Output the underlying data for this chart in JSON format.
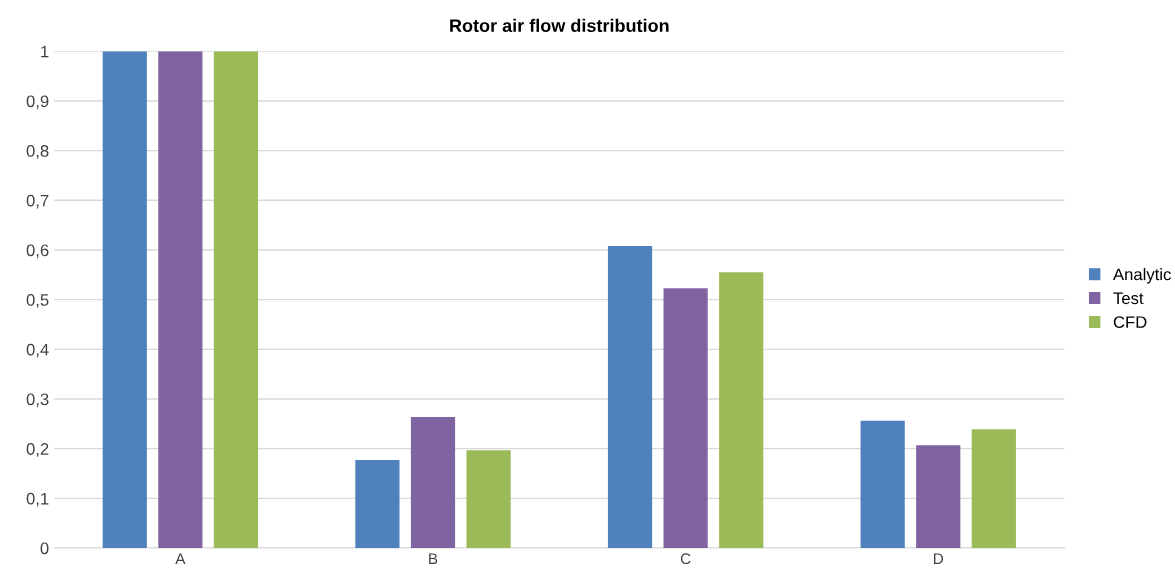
{
  "chart_data": {
    "type": "bar",
    "title": "Rotor air flow distribution",
    "categories": [
      "A",
      "B",
      "C",
      "D"
    ],
    "series": [
      {
        "name": "Analytic",
        "color": "#4f81bd",
        "values": [
          1,
          0.177,
          0.608,
          0.256
        ]
      },
      {
        "name": "Test",
        "color": "#8064a2",
        "values": [
          1,
          0.264,
          0.523,
          0.207
        ]
      },
      {
        "name": "CFD",
        "color": "#9bbb59",
        "values": [
          1,
          0.197,
          0.555,
          0.239
        ]
      }
    ],
    "ylim": [
      0,
      1
    ],
    "yticks": [
      0,
      {
        "value": 0.1,
        "label": "0,1"
      },
      {
        "value": 0.2,
        "label": "0,2"
      },
      {
        "value": 0.3,
        "label": "0,3"
      },
      {
        "value": 0.4,
        "label": "0,4"
      },
      {
        "value": 0.5,
        "label": "0,5"
      },
      {
        "value": 0.6,
        "label": "0,6"
      },
      {
        "value": 0.7,
        "label": "0,7"
      },
      {
        "value": 0.8,
        "label": "0,8"
      },
      {
        "value": 0.9,
        "label": "0,9"
      },
      1
    ],
    "grid": "y",
    "legend": "right"
  }
}
